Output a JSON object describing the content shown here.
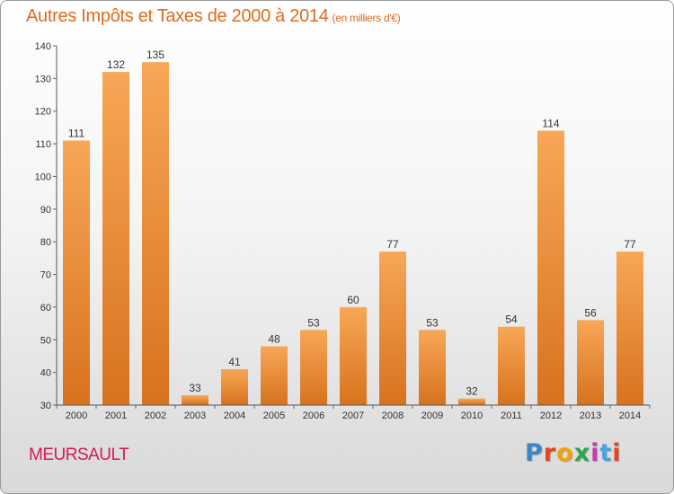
{
  "header": {
    "title": "Autres Impôts et Taxes de 2000 à 2014",
    "subtitle": "(en milliers d'€)"
  },
  "footer": {
    "place": "MEURSAULT",
    "logo": "Proxiti",
    "logo_colors": [
      "#3a86c8",
      "#e8441e",
      "#f2a20f",
      "#2aa84a",
      "#c63ba8",
      "#4aa3df",
      "#e8441e"
    ]
  },
  "colors": {
    "bar_top": "#f7a756",
    "bar_bottom": "#d8721e",
    "axis": "#555555",
    "grid_tick": "#666666"
  },
  "chart_data": {
    "type": "bar",
    "categories": [
      "2000",
      "2001",
      "2002",
      "2003",
      "2004",
      "2005",
      "2006",
      "2007",
      "2008",
      "2009",
      "2010",
      "2011",
      "2012",
      "2013",
      "2014"
    ],
    "values": [
      111,
      132,
      135,
      33,
      41,
      48,
      53,
      60,
      77,
      53,
      32,
      54,
      114,
      56,
      77
    ],
    "title": "Autres Impôts et Taxes de 2000 à 2014",
    "subtitle": "(en milliers d'€)",
    "xlabel": "",
    "ylabel": "",
    "ylim": [
      30,
      140
    ],
    "yticks": [
      30,
      40,
      50,
      60,
      70,
      80,
      90,
      100,
      110,
      120,
      130,
      140
    ],
    "grid": false,
    "legend": "none"
  }
}
